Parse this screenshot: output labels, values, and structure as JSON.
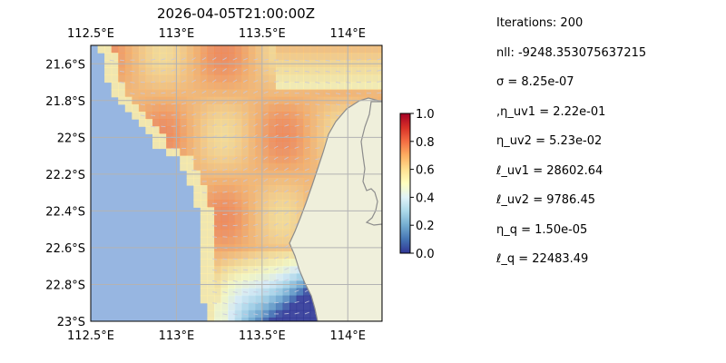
{
  "title": "2026-04-05T21:00:00Z",
  "params": [
    "Iterations: 200",
    "nll: -9248.353075637215",
    "σ = 8.25e-07",
    ",η_uv1 = 2.22e-01",
    "η_uv2 = 5.23e-02",
    "ℓ_uv1 = 28602.64",
    "ℓ_uv2 = 9786.45",
    "η_q = 1.50e-05",
    "ℓ_q = 22483.49"
  ],
  "colors": {
    "ocean": "#97b6e1",
    "land": "#efefdb",
    "coast": "#8c8c8c",
    "grid": "#b3b3b3",
    "arrow": "#c8c8dc"
  },
  "chart_data": {
    "type": "heatmap",
    "map_projection": "PlateCarree",
    "x_axis": {
      "range": [
        112.5,
        114.2
      ],
      "ticks": [
        112.5,
        113.0,
        113.5,
        114.0
      ],
      "tick_labels": [
        "112.5°E",
        "113°E",
        "113.5°E",
        "114°E"
      ],
      "placement": "top and bottom"
    },
    "y_axis": {
      "range": [
        -23.0,
        -21.5
      ],
      "ticks": [
        -21.6,
        -21.8,
        -22.0,
        -22.2,
        -22.4,
        -22.6,
        -22.8,
        -23.0
      ],
      "tick_labels": [
        "21.6°S",
        "21.8°S",
        "22°S",
        "22.2°S",
        "22.4°S",
        "22.6°S",
        "22.8°S",
        "23°S"
      ]
    },
    "grid": true,
    "colorbar": {
      "colormap": "RdYlBu_r",
      "range": [
        0.0,
        1.0
      ],
      "ticks": [
        0.0,
        0.2,
        0.4,
        0.6,
        0.8,
        1.0
      ],
      "tick_labels": [
        "0.0",
        "0.2",
        "0.4",
        "0.6",
        "0.8",
        "1.0"
      ],
      "placement": "right"
    },
    "field_approx": {
      "description": "gridded probability field estimated from image; lon/lat of region anchors and value",
      "anchors": [
        {
          "lon": 113.95,
          "lat": -21.55,
          "value": 0.56
        },
        {
          "lon": 113.5,
          "lat": -21.6,
          "value": 0.66
        },
        {
          "lon": 112.8,
          "lat": -21.7,
          "value": 0.72
        },
        {
          "lon": 113.6,
          "lat": -22.4,
          "value": 0.72
        },
        {
          "lon": 113.4,
          "lat": -22.75,
          "value": 0.14
        },
        {
          "lon": 113.6,
          "lat": -22.92,
          "value": 0.05
        }
      ]
    },
    "vectors": "gray quiver arrows overlaid on the field (velocity)"
  }
}
